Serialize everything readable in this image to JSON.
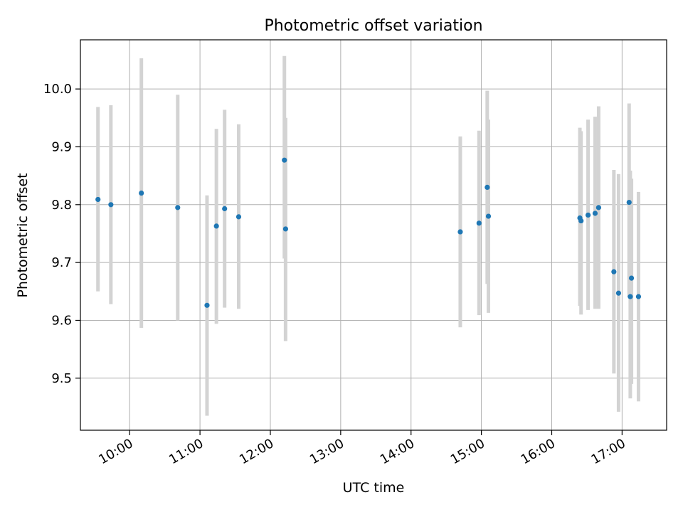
{
  "chart_data": {
    "type": "scatter",
    "title": "Photometric offset variation",
    "xlabel": "UTC time",
    "ylabel": "Photometric offset",
    "x_is_time": true,
    "xlim": [
      "09:18",
      "17:38"
    ],
    "ylim": [
      9.41,
      10.085
    ],
    "x_ticks": [
      "10:00",
      "11:00",
      "12:00",
      "13:00",
      "14:00",
      "15:00",
      "16:00",
      "17:00"
    ],
    "y_ticks": [
      9.5,
      9.6,
      9.7,
      9.8,
      9.9,
      10.0
    ],
    "y_tick_labels": [
      "9.5",
      "9.6",
      "9.7",
      "9.8",
      "9.9",
      "10.0"
    ],
    "grid": true,
    "legend": "none",
    "marker_color": "#1f77b4",
    "errorbar_color": "#d3d3d3",
    "series": [
      {
        "x": [
          "09:33",
          "09:44",
          "10:10",
          "10:41",
          "11:06",
          "11:14",
          "11:21",
          "11:33",
          "12:12",
          "12:13",
          "14:42",
          "14:58",
          "15:05",
          "15:06",
          "16:24",
          "16:25",
          "16:31",
          "16:37",
          "16:40",
          "16:53",
          "16:57",
          "17:06",
          "17:07",
          "17:08",
          "17:14"
        ],
        "y": [
          9.809,
          9.8,
          9.82,
          9.795,
          9.626,
          9.763,
          9.793,
          9.779,
          9.877,
          9.758,
          9.753,
          9.768,
          9.83,
          9.78,
          9.777,
          9.772,
          9.782,
          9.785,
          9.795,
          9.684,
          9.647,
          9.804,
          9.641,
          9.673,
          9.641
        ],
        "yerr_low": [
          9.65,
          9.628,
          9.587,
          9.6,
          9.435,
          9.594,
          9.622,
          9.62,
          9.707,
          9.564,
          9.588,
          9.609,
          9.663,
          9.613,
          9.625,
          9.61,
          9.618,
          9.62,
          9.62,
          9.508,
          9.442,
          9.64,
          9.465,
          9.49,
          9.46
        ],
        "yerr_high": [
          9.969,
          9.972,
          10.053,
          9.99,
          9.816,
          9.931,
          9.964,
          9.939,
          10.057,
          9.95,
          9.918,
          9.928,
          9.997,
          9.947,
          9.933,
          9.927,
          9.947,
          9.952,
          9.97,
          9.86,
          9.853,
          9.975,
          9.859,
          9.845,
          9.822
        ]
      }
    ]
  }
}
